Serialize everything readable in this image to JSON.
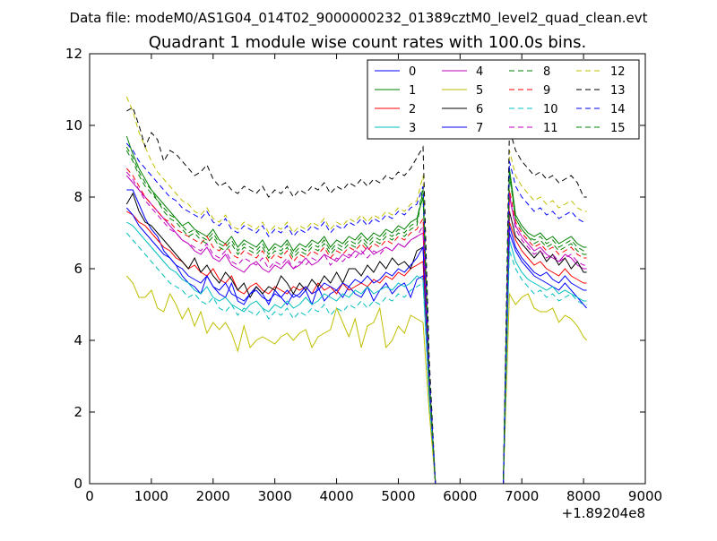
{
  "chart_data": {
    "type": "line",
    "suptitle": "Data file: modeM0/AS1G04_014T02_9000000232_01389cztM0_level2_quad_clean.evt",
    "title": "Quadrant 1 module wise count rates with 100.0s bins.",
    "xlabel": "",
    "ylabel": "",
    "x_offset_label": "+1.89204e8",
    "xlim": [
      0,
      9000
    ],
    "ylim": [
      0,
      12
    ],
    "xticks": [
      0,
      1000,
      2000,
      3000,
      4000,
      5000,
      6000,
      7000,
      8000,
      9000
    ],
    "yticks": [
      0,
      2,
      4,
      6,
      8,
      10,
      12
    ],
    "grid": false,
    "legend_position": "top-right",
    "legend_columns": 4,
    "x": [
      600,
      700,
      800,
      900,
      1000,
      1100,
      1200,
      1300,
      1400,
      1500,
      1600,
      1700,
      1800,
      1900,
      2000,
      2100,
      2200,
      2300,
      2400,
      2500,
      2600,
      2700,
      2800,
      2900,
      3000,
      3100,
      3200,
      3300,
      3400,
      3500,
      3600,
      3700,
      3800,
      3900,
      4000,
      4100,
      4200,
      4300,
      4400,
      4500,
      4600,
      4700,
      4800,
      4900,
      5000,
      5100,
      5200,
      5300,
      5400,
      5500,
      5600,
      5700,
      6500,
      6700,
      6800,
      6900,
      7000,
      7100,
      7200,
      7300,
      7400,
      7500,
      7600,
      7700,
      7800,
      7900,
      8000,
      8050
    ],
    "series": [
      {
        "name": "0",
        "color": "#0000ff",
        "dashed": false,
        "values": [
          8.2,
          8.2,
          7.8,
          7.4,
          7.1,
          6.9,
          6.5,
          6.3,
          6.1,
          5.8,
          5.6,
          5.5,
          5.3,
          5.8,
          5.5,
          5.3,
          5.2,
          5.6,
          5.1,
          5.0,
          5.3,
          5.5,
          5.3,
          5.0,
          5.4,
          5.2,
          5.0,
          5.3,
          5.2,
          5.4,
          5.0,
          5.5,
          5.1,
          5.3,
          5.4,
          5.2,
          5.5,
          5.3,
          5.2,
          5.5,
          5.1,
          5.4,
          5.6,
          5.3,
          5.5,
          5.6,
          5.2,
          5.7,
          5.8,
          2.5,
          0,
          0,
          0,
          0,
          7.0,
          6.5,
          6.2,
          6.0,
          5.8,
          5.7,
          5.6,
          5.5,
          5.4,
          5.6,
          5.4,
          5.2,
          5.0,
          4.9
        ]
      },
      {
        "name": "1",
        "color": "#008000",
        "dashed": false,
        "values": [
          9.7,
          9.2,
          8.8,
          8.5,
          8.2,
          8.0,
          7.8,
          7.6,
          7.4,
          7.2,
          7.3,
          7.1,
          7.0,
          6.9,
          7.1,
          6.8,
          6.7,
          6.9,
          6.6,
          6.8,
          6.7,
          6.6,
          6.8,
          6.5,
          6.7,
          6.6,
          6.8,
          6.5,
          6.7,
          6.6,
          6.8,
          6.7,
          6.9,
          6.6,
          6.8,
          6.7,
          6.9,
          6.8,
          7.0,
          6.8,
          7.0,
          6.9,
          7.1,
          7.0,
          7.2,
          7.1,
          7.3,
          7.4,
          8.0,
          3.0,
          0,
          0,
          0,
          0,
          8.8,
          7.5,
          7.2,
          7.0,
          6.9,
          7.0,
          6.8,
          6.9,
          6.7,
          6.8,
          6.9,
          6.7,
          6.6,
          6.6
        ]
      },
      {
        "name": "2",
        "color": "#ff0000",
        "dashed": false,
        "values": [
          7.6,
          7.5,
          7.3,
          7.2,
          7.0,
          6.8,
          6.6,
          6.5,
          6.3,
          6.2,
          6.0,
          6.1,
          5.9,
          5.8,
          6.0,
          5.7,
          5.6,
          5.8,
          5.4,
          5.3,
          5.5,
          5.6,
          5.4,
          5.3,
          5.5,
          5.4,
          5.3,
          5.5,
          5.4,
          5.5,
          5.3,
          5.6,
          5.4,
          5.5,
          5.3,
          5.6,
          5.4,
          5.5,
          5.6,
          5.5,
          5.7,
          5.6,
          5.8,
          5.7,
          5.9,
          5.8,
          6.0,
          6.1,
          6.2,
          2.6,
          0,
          0,
          0,
          0,
          7.3,
          6.8,
          6.5,
          6.3,
          6.1,
          6.2,
          6.0,
          5.9,
          5.8,
          6.0,
          5.8,
          5.7,
          5.6,
          5.6
        ]
      },
      {
        "name": "3",
        "color": "#00bfbf",
        "dashed": false,
        "values": [
          7.3,
          7.2,
          7.0,
          6.8,
          6.6,
          6.4,
          6.2,
          6.0,
          5.9,
          5.7,
          5.6,
          5.4,
          5.3,
          5.5,
          5.2,
          5.1,
          5.2,
          5.0,
          4.9,
          4.8,
          5.0,
          5.1,
          4.9,
          4.8,
          5.0,
          4.9,
          5.1,
          4.9,
          5.0,
          5.2,
          5.0,
          5.1,
          5.3,
          5.2,
          5.1,
          5.3,
          5.2,
          5.4,
          5.3,
          5.5,
          5.3,
          5.4,
          5.5,
          5.4,
          5.6,
          5.5,
          5.6,
          5.8,
          5.7,
          2.5,
          0,
          0,
          0,
          0,
          6.8,
          6.2,
          5.9,
          5.7,
          5.6,
          5.5,
          5.4,
          5.5,
          5.3,
          5.4,
          5.3,
          5.2,
          5.1,
          5.1
        ]
      },
      {
        "name": "4",
        "color": "#bf00bf",
        "dashed": false,
        "values": [
          8.6,
          8.4,
          8.2,
          8.0,
          7.8,
          7.6,
          7.4,
          7.2,
          7.0,
          6.8,
          6.7,
          6.5,
          6.4,
          6.6,
          6.3,
          6.2,
          6.4,
          6.1,
          6.0,
          5.9,
          6.1,
          6.2,
          6.0,
          5.9,
          6.1,
          6.0,
          6.2,
          6.0,
          6.1,
          6.3,
          6.1,
          6.2,
          6.4,
          6.3,
          6.2,
          6.4,
          6.3,
          6.5,
          6.4,
          6.6,
          6.4,
          6.5,
          6.6,
          6.5,
          6.7,
          6.6,
          6.8,
          6.9,
          7.0,
          2.8,
          0,
          0,
          0,
          0,
          8.0,
          7.2,
          6.9,
          6.7,
          6.5,
          6.6,
          6.4,
          6.3,
          6.2,
          6.4,
          6.3,
          6.1,
          6.0,
          6.0
        ]
      },
      {
        "name": "5",
        "color": "#bfbf00",
        "dashed": false,
        "values": [
          5.8,
          5.6,
          5.2,
          5.2,
          5.4,
          4.9,
          4.8,
          5.3,
          5.0,
          4.6,
          4.9,
          4.4,
          4.8,
          4.2,
          4.5,
          4.3,
          4.5,
          4.2,
          3.7,
          4.4,
          3.8,
          4.0,
          4.1,
          4.0,
          3.9,
          4.1,
          4.2,
          4.0,
          4.2,
          4.3,
          3.8,
          4.1,
          4.2,
          4.3,
          4.9,
          4.5,
          4.1,
          4.6,
          3.8,
          4.4,
          4.5,
          4.9,
          3.8,
          4.0,
          4.4,
          4.2,
          4.7,
          4.6,
          4.5,
          2.0,
          0,
          0,
          0,
          0,
          5.3,
          5.0,
          5.2,
          5.3,
          4.9,
          4.8,
          4.8,
          4.9,
          4.5,
          4.7,
          4.6,
          4.4,
          4.1,
          4.0
        ]
      },
      {
        "name": "6",
        "color": "#000000",
        "dashed": false,
        "values": [
          7.8,
          8.1,
          7.6,
          7.3,
          7.2,
          7.0,
          6.8,
          6.6,
          6.4,
          6.2,
          6.0,
          6.3,
          5.9,
          6.1,
          5.8,
          5.6,
          5.9,
          5.7,
          5.4,
          5.6,
          5.2,
          5.5,
          5.3,
          5.5,
          5.4,
          5.8,
          5.6,
          5.3,
          5.6,
          5.4,
          5.7,
          5.5,
          5.8,
          5.6,
          5.9,
          5.6,
          6.0,
          6.0,
          5.8,
          6.1,
          5.9,
          6.2,
          6.0,
          6.3,
          6.1,
          6.2,
          6.0,
          6.5,
          6.6,
          2.9,
          0,
          0,
          0,
          0,
          7.6,
          6.9,
          6.7,
          6.5,
          6.3,
          6.5,
          6.2,
          6.4,
          6.1,
          6.3,
          6.0,
          6.2,
          5.9,
          5.9
        ]
      },
      {
        "name": "7",
        "color": "#0000ff",
        "dashed": false,
        "values": [
          7.7,
          7.5,
          7.2,
          7.0,
          6.8,
          6.6,
          6.4,
          6.3,
          6.1,
          6.0,
          5.8,
          5.7,
          5.6,
          5.8,
          5.5,
          5.4,
          5.6,
          5.3,
          5.2,
          5.1,
          5.3,
          5.4,
          5.2,
          5.1,
          5.3,
          5.2,
          5.4,
          5.2,
          5.3,
          5.5,
          5.3,
          5.4,
          5.6,
          5.5,
          5.4,
          5.6,
          5.5,
          5.7,
          5.6,
          5.8,
          5.6,
          5.7,
          5.9,
          5.8,
          6.0,
          5.9,
          6.1,
          6.3,
          6.6,
          2.7,
          0,
          0,
          0,
          0,
          7.2,
          6.6,
          6.3,
          6.1,
          5.9,
          5.8,
          5.9,
          5.7,
          5.6,
          5.8,
          5.6,
          5.5,
          5.4,
          5.4
        ]
      },
      {
        "name": "8",
        "color": "#008000",
        "dashed": true,
        "values": [
          9.4,
          9.1,
          8.7,
          8.4,
          8.2,
          7.9,
          7.7,
          7.5,
          7.4,
          7.2,
          7.0,
          7.1,
          6.9,
          6.8,
          7.0,
          6.7,
          6.6,
          6.8,
          6.5,
          6.7,
          6.6,
          6.5,
          6.7,
          6.4,
          6.6,
          6.5,
          6.7,
          6.4,
          6.6,
          6.5,
          6.7,
          6.6,
          6.8,
          6.5,
          6.7,
          6.6,
          6.8,
          6.7,
          6.9,
          6.7,
          6.9,
          6.8,
          7.0,
          6.9,
          7.1,
          7.0,
          7.2,
          7.3,
          8.3,
          3.0,
          0,
          0,
          0,
          0,
          8.6,
          7.4,
          7.1,
          6.9,
          6.8,
          6.9,
          6.7,
          6.8,
          6.6,
          6.7,
          6.8,
          6.6,
          6.5,
          6.5
        ]
      },
      {
        "name": "9",
        "color": "#ff0000",
        "dashed": true,
        "values": [
          8.8,
          8.6,
          8.3,
          8.0,
          7.8,
          7.6,
          7.4,
          7.3,
          7.1,
          7.0,
          6.9,
          6.8,
          6.7,
          6.9,
          6.6,
          6.5,
          6.7,
          6.4,
          6.3,
          6.5,
          6.4,
          6.3,
          6.5,
          6.2,
          6.4,
          6.3,
          6.5,
          6.2,
          6.4,
          6.3,
          6.5,
          6.4,
          6.6,
          6.3,
          6.5,
          6.4,
          6.6,
          6.5,
          6.7,
          6.5,
          6.7,
          6.6,
          6.8,
          6.7,
          6.9,
          6.8,
          7.0,
          7.1,
          7.4,
          2.9,
          0,
          0,
          0,
          0,
          8.2,
          7.3,
          7.0,
          6.8,
          6.6,
          6.7,
          6.5,
          6.6,
          6.4,
          6.5,
          6.6,
          6.4,
          6.3,
          6.3
        ]
      },
      {
        "name": "10",
        "color": "#00bfbf",
        "dashed": true,
        "values": [
          7.0,
          6.8,
          6.6,
          6.4,
          6.2,
          6.0,
          5.8,
          5.6,
          5.5,
          5.4,
          5.2,
          5.3,
          5.1,
          5.0,
          5.2,
          4.9,
          4.8,
          5.0,
          4.7,
          4.9,
          4.8,
          4.7,
          4.9,
          4.6,
          4.8,
          4.7,
          4.9,
          4.6,
          4.8,
          4.7,
          4.9,
          4.8,
          5.0,
          4.7,
          4.9,
          4.8,
          5.0,
          4.9,
          5.1,
          4.9,
          5.1,
          5.0,
          5.2,
          5.1,
          5.3,
          5.2,
          5.4,
          5.5,
          5.6,
          2.4,
          0,
          0,
          0,
          0,
          6.5,
          6.0,
          5.7,
          5.5,
          5.3,
          5.4,
          5.2,
          5.3,
          5.1,
          5.2,
          5.3,
          5.1,
          5.0,
          5.0
        ]
      },
      {
        "name": "11",
        "color": "#bf00bf",
        "dashed": true,
        "values": [
          8.7,
          8.5,
          8.2,
          7.9,
          7.7,
          7.5,
          7.3,
          7.1,
          7.0,
          6.8,
          6.7,
          6.6,
          6.5,
          6.7,
          6.4,
          6.3,
          6.5,
          6.2,
          6.1,
          6.3,
          6.2,
          6.1,
          6.3,
          6.0,
          6.2,
          6.1,
          6.3,
          6.0,
          6.2,
          6.1,
          6.3,
          6.2,
          6.4,
          6.1,
          6.3,
          6.2,
          6.4,
          6.3,
          6.5,
          6.3,
          6.5,
          6.4,
          6.6,
          6.5,
          6.7,
          6.6,
          6.8,
          6.9,
          7.2,
          2.8,
          0,
          0,
          0,
          0,
          8.1,
          7.1,
          6.8,
          6.6,
          6.4,
          6.5,
          6.3,
          6.4,
          6.2,
          6.3,
          6.4,
          6.2,
          6.1,
          6.1
        ]
      },
      {
        "name": "12",
        "color": "#bfbf00",
        "dashed": true,
        "values": [
          10.8,
          10.4,
          9.8,
          9.4,
          9.0,
          8.7,
          8.5,
          8.3,
          8.1,
          7.9,
          7.8,
          7.6,
          7.5,
          7.7,
          7.4,
          7.3,
          7.5,
          7.2,
          7.1,
          7.3,
          7.2,
          7.1,
          7.3,
          7.0,
          7.2,
          7.1,
          7.3,
          7.0,
          7.2,
          7.1,
          7.3,
          7.2,
          7.4,
          7.1,
          7.3,
          7.2,
          7.4,
          7.3,
          7.5,
          7.3,
          7.5,
          7.4,
          7.6,
          7.5,
          7.7,
          7.6,
          7.8,
          7.9,
          8.6,
          3.2,
          0,
          0,
          0,
          0,
          9.3,
          8.6,
          8.3,
          8.1,
          7.9,
          8.0,
          7.8,
          7.9,
          7.7,
          7.8,
          7.9,
          7.7,
          7.6,
          7.6
        ]
      },
      {
        "name": "13",
        "color": "#000000",
        "dashed": true,
        "values": [
          10.4,
          10.5,
          10.0,
          9.4,
          9.8,
          9.6,
          9.0,
          9.3,
          9.2,
          9.0,
          8.8,
          8.6,
          8.7,
          8.9,
          8.5,
          8.3,
          8.4,
          8.2,
          8.1,
          8.3,
          8.2,
          8.1,
          8.3,
          8.0,
          8.2,
          8.1,
          8.3,
          8.0,
          8.2,
          8.1,
          8.3,
          8.2,
          8.4,
          8.1,
          8.3,
          8.2,
          8.4,
          8.3,
          8.5,
          8.3,
          8.5,
          8.4,
          8.6,
          8.5,
          8.7,
          8.6,
          8.8,
          9.1,
          9.4,
          3.5,
          0,
          0,
          0,
          0,
          9.9,
          9.3,
          9.0,
          8.8,
          8.6,
          8.7,
          8.5,
          8.6,
          8.4,
          8.5,
          8.6,
          8.4,
          8.0,
          8.0
        ]
      },
      {
        "name": "14",
        "color": "#0000ff",
        "dashed": true,
        "values": [
          9.5,
          9.3,
          9.0,
          8.8,
          8.6,
          8.4,
          8.2,
          8.0,
          7.9,
          7.7,
          7.6,
          7.5,
          7.4,
          7.6,
          7.3,
          7.2,
          7.4,
          7.1,
          7.0,
          7.2,
          7.1,
          7.0,
          7.2,
          6.9,
          7.1,
          7.0,
          7.2,
          6.9,
          7.1,
          7.0,
          7.2,
          7.1,
          7.3,
          7.0,
          7.2,
          7.1,
          7.3,
          7.2,
          7.4,
          7.2,
          7.4,
          7.3,
          7.5,
          7.4,
          7.6,
          7.5,
          7.7,
          7.8,
          8.3,
          3.1,
          0,
          0,
          0,
          0,
          9.0,
          8.3,
          8.0,
          7.8,
          7.6,
          7.7,
          7.5,
          7.6,
          7.4,
          7.5,
          7.6,
          7.4,
          7.3,
          7.3
        ]
      },
      {
        "name": "15",
        "color": "#008000",
        "dashed": true,
        "values": [
          9.3,
          9.0,
          8.6,
          8.3,
          8.1,
          7.9,
          7.6,
          7.4,
          7.3,
          7.1,
          6.9,
          7.0,
          6.8,
          6.7,
          6.9,
          6.6,
          6.5,
          6.7,
          6.4,
          6.6,
          6.5,
          6.4,
          6.6,
          6.3,
          6.5,
          6.4,
          6.6,
          6.3,
          6.5,
          6.4,
          6.6,
          6.5,
          6.7,
          6.4,
          6.6,
          6.5,
          6.7,
          6.6,
          6.8,
          6.6,
          6.8,
          6.7,
          6.9,
          6.8,
          7.0,
          6.9,
          7.1,
          7.2,
          8.2,
          2.9,
          0,
          0,
          0,
          0,
          8.7,
          7.4,
          7.1,
          6.9,
          6.7,
          6.8,
          6.6,
          6.7,
          6.5,
          6.6,
          6.7,
          6.5,
          6.4,
          6.4
        ]
      }
    ]
  }
}
